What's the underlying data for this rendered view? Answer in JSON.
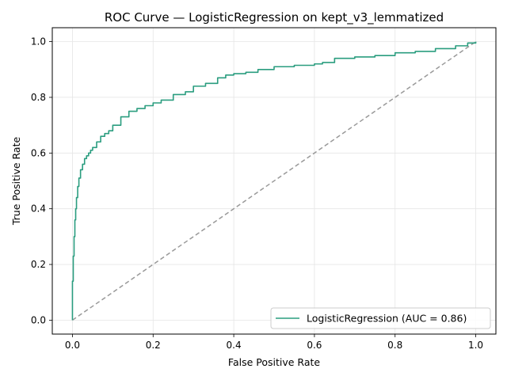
{
  "chart_data": {
    "type": "line",
    "title": "ROC Curve — LogisticRegression on kept_v3_lemmatized",
    "xlabel": "False Positive Rate",
    "ylabel": "True Positive Rate",
    "xlim": [
      -0.05,
      1.05
    ],
    "ylim": [
      -0.05,
      1.05
    ],
    "xticks": [
      "0.0",
      "0.2",
      "0.4",
      "0.6",
      "0.8",
      "1.0"
    ],
    "yticks": [
      "0.0",
      "0.2",
      "0.4",
      "0.6",
      "0.8",
      "1.0"
    ],
    "grid": true,
    "legend_position": "lower-right",
    "series": [
      {
        "name": "LogisticRegression (AUC = 0.86)",
        "color": "#2a9d7f",
        "x": [
          0.0,
          0.0,
          0.002,
          0.004,
          0.006,
          0.008,
          0.01,
          0.013,
          0.016,
          0.02,
          0.025,
          0.03,
          0.035,
          0.04,
          0.045,
          0.05,
          0.06,
          0.07,
          0.08,
          0.09,
          0.1,
          0.12,
          0.14,
          0.16,
          0.18,
          0.2,
          0.22,
          0.25,
          0.28,
          0.3,
          0.33,
          0.36,
          0.38,
          0.4,
          0.43,
          0.46,
          0.5,
          0.55,
          0.6,
          0.62,
          0.65,
          0.7,
          0.75,
          0.8,
          0.85,
          0.9,
          0.95,
          0.98,
          1.0
        ],
        "y": [
          0.0,
          0.14,
          0.23,
          0.3,
          0.36,
          0.4,
          0.44,
          0.48,
          0.51,
          0.54,
          0.56,
          0.58,
          0.59,
          0.6,
          0.61,
          0.62,
          0.64,
          0.66,
          0.67,
          0.68,
          0.7,
          0.73,
          0.75,
          0.76,
          0.77,
          0.78,
          0.79,
          0.81,
          0.82,
          0.84,
          0.85,
          0.87,
          0.88,
          0.885,
          0.89,
          0.9,
          0.91,
          0.915,
          0.92,
          0.925,
          0.94,
          0.945,
          0.95,
          0.96,
          0.965,
          0.975,
          0.985,
          0.995,
          1.0
        ]
      },
      {
        "name": "",
        "color": "#999999",
        "dashed": true,
        "x": [
          0.0,
          1.0
        ],
        "y": [
          0.0,
          1.0
        ]
      }
    ]
  }
}
